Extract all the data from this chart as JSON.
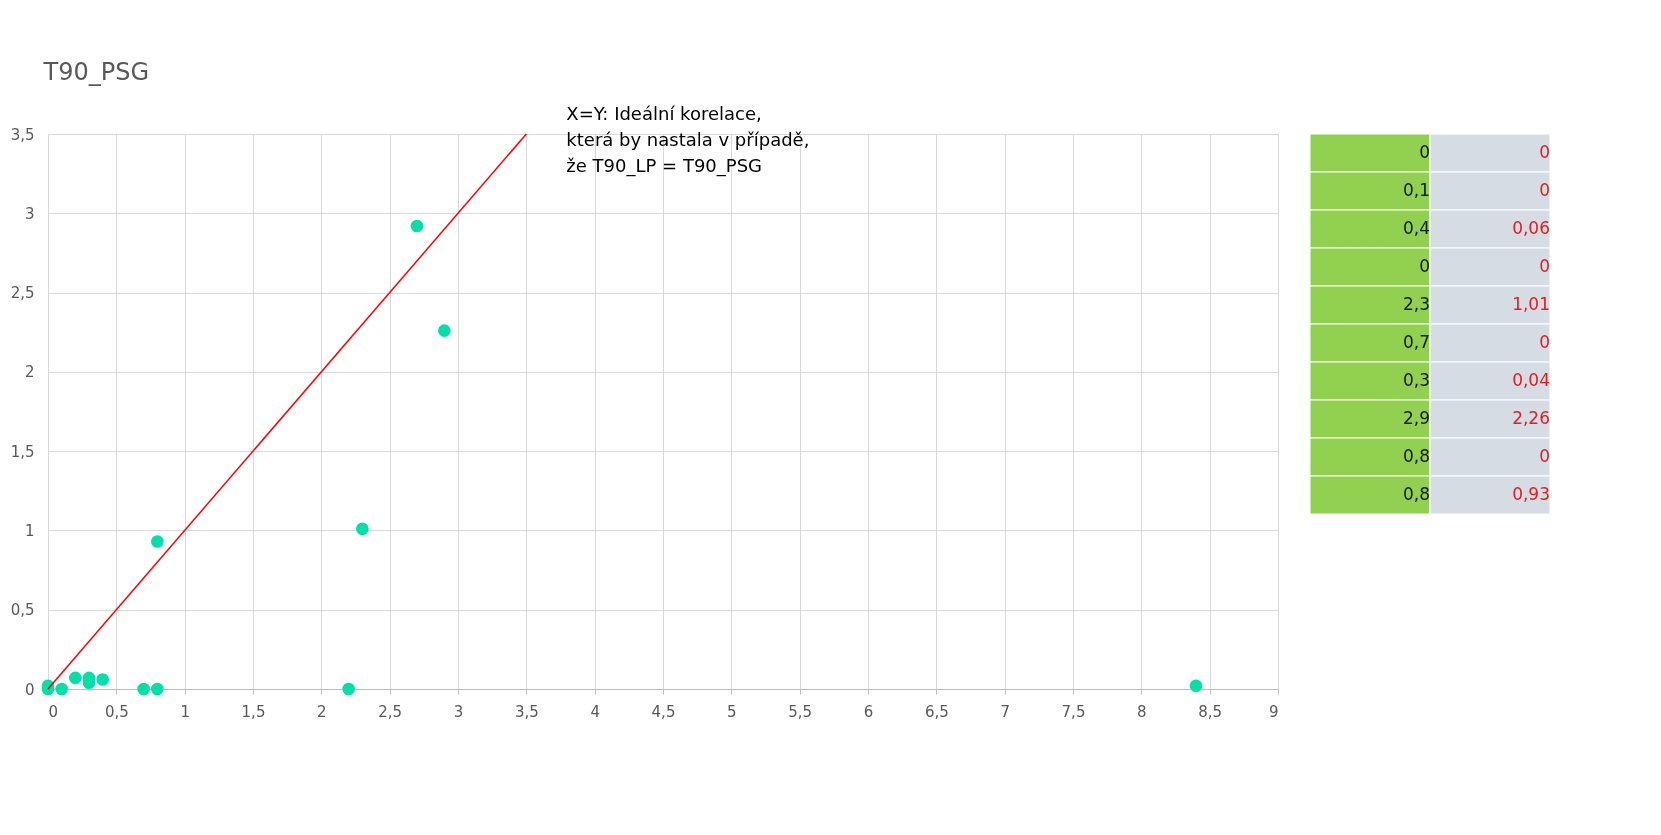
{
  "chart_data": [
    {
      "type": "scatter",
      "ylabel": "T90_PSG",
      "x": [
        0,
        0,
        0.1,
        0.2,
        0.3,
        0.3,
        0.4,
        0.7,
        0.8,
        0.8,
        2.2,
        2.3,
        2.7,
        2.9,
        8.4
      ],
      "series": [
        {
          "type": "scatter",
          "marker": "circle",
          "color": "#00e0a8",
          "values": [
            0.02,
            0,
            0,
            0.07,
            0.07,
            0.04,
            0.06,
            0,
            0,
            0.93,
            0,
            1.01,
            2.92,
            2.26,
            0.02
          ]
        },
        {
          "type": "line",
          "color": "#ff0000",
          "x": [
            0,
            3.5
          ],
          "values": [
            0,
            3.5
          ]
        }
      ],
      "annotations": [
        {
          "text": "X=Y: Ideální korelace, která by nastala v případě, že T90_LP = T90_PSG",
          "x": 3.5,
          "y": 3.5
        }
      ],
      "xlim": [
        0,
        9
      ],
      "xticks": [
        0,
        {
          "value": 0.5,
          "label": "0,5"
        },
        1,
        {
          "value": 1.5,
          "label": "1,5"
        },
        2,
        {
          "value": 2.5,
          "label": "2,5"
        },
        3,
        {
          "value": 3.5,
          "label": "3,5"
        },
        4,
        {
          "value": 4.5,
          "label": "4,5"
        },
        5,
        {
          "value": 5.5,
          "label": "5,5"
        },
        6,
        {
          "value": 6.5,
          "label": "6,5"
        },
        7,
        {
          "value": 7.5,
          "label": "7,5"
        },
        8,
        {
          "value": 8.5,
          "label": "8,5"
        },
        9
      ],
      "ylim": [
        0,
        3.5
      ],
      "yticks": [
        0,
        {
          "value": 0.5,
          "label": "0,5"
        },
        1,
        {
          "value": 1.5,
          "label": "1,5"
        },
        2,
        {
          "value": 2.5,
          "label": "2,5"
        },
        3,
        {
          "value": 3.5,
          "label": "3,5"
        }
      ],
      "grid": true
    },
    {
      "type": "other",
      "colors": [
        "#92d050",
        "#d6dce4"
      ],
      "annotations": [
        "0",
        "0",
        "0,1",
        "0",
        "0,4",
        "0,06",
        "0",
        "0",
        "2,3",
        "1,01",
        "0,7",
        "0",
        "0,3",
        "0,04",
        "2,9",
        "2,26",
        "0,8",
        "0",
        "0,8",
        "0,93"
      ]
    }
  ]
}
